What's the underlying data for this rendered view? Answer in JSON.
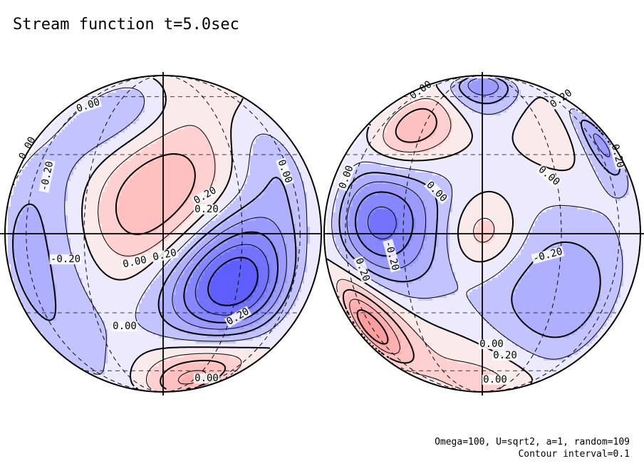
{
  "title": "Stream function t=5.0sec",
  "footer": {
    "line1": "Omega=100, U=sqrt2, a=1, random=109",
    "line2": "Contour interval=0.1"
  },
  "colors": {
    "positive": "#e05050",
    "negative": "#3b3bdc",
    "line": "#000000",
    "background": "#ffffff"
  },
  "chart_data": {
    "type": "contour",
    "projection": "orthographic (two hemispheres)",
    "contour_interval": 0.1,
    "hemispheres": [
      {
        "name": "left",
        "labels": [
          "0.00",
          "0.00",
          "-0.20",
          "0.20",
          "0.20",
          "0.00",
          "0.20",
          "0.00",
          "0.20",
          "0.00",
          "0.00",
          "-0.20"
        ],
        "features": [
          {
            "lon": 0,
            "lat": 8,
            "amp": 0.45,
            "width": 22
          },
          {
            "lon": 25,
            "lat": -18,
            "amp": -0.85,
            "width": 20
          },
          {
            "lon": 25,
            "lat": -60,
            "amp": 0.4,
            "width": 20
          },
          {
            "lon": -25,
            "lat": 50,
            "amp": -0.22,
            "width": 18
          },
          {
            "lon": 50,
            "lat": 25,
            "amp": -0.18,
            "width": 16
          },
          {
            "lon": -55,
            "lat": 0,
            "amp": -0.22,
            "width": 26
          },
          {
            "lon": 15,
            "lat": 65,
            "amp": 0.1,
            "width": 20
          },
          {
            "lon": -60,
            "lat": -45,
            "amp": -0.12,
            "width": 25
          }
        ]
      },
      {
        "name": "right",
        "labels": [
          "0.00",
          "-0.20",
          "0.00",
          "0.00",
          "0.00",
          "0.20",
          "0.20",
          "-0.20",
          "0.00",
          "0.20",
          "0.00",
          "0.20"
        ],
        "features": [
          {
            "lon": -40,
            "lat": 5,
            "amp": -0.55,
            "width": 18
          },
          {
            "lon": 0,
            "lat": 0,
            "amp": 0.25,
            "width": 10
          },
          {
            "lon": -60,
            "lat": -35,
            "amp": 0.5,
            "width": 14
          },
          {
            "lon": -35,
            "lat": 40,
            "amp": 0.35,
            "width": 14
          },
          {
            "lon": 0,
            "lat": 70,
            "amp": -0.4,
            "width": 14
          },
          {
            "lon": 65,
            "lat": 35,
            "amp": -0.35,
            "width": 12
          },
          {
            "lon": 30,
            "lat": -25,
            "amp": -0.3,
            "width": 25
          },
          {
            "lon": 0,
            "lat": -65,
            "amp": 0.2,
            "width": 22
          },
          {
            "lon": 40,
            "lat": 40,
            "amp": 0.12,
            "width": 14
          }
        ]
      }
    ]
  }
}
